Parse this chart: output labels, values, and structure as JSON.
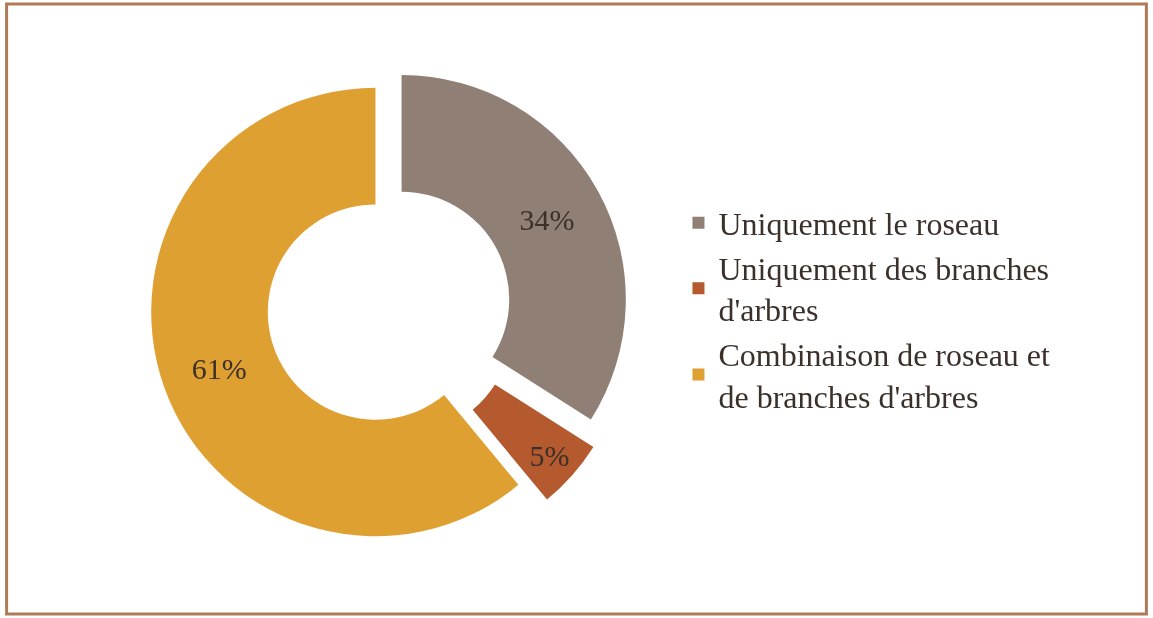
{
  "chart_data": {
    "type": "donut",
    "categories": [
      "Uniquement le roseau",
      "Uniquement des branches d'arbres",
      "Combinaison de roseau et de branches d'arbres"
    ],
    "values": [
      34,
      5,
      61
    ],
    "colors": [
      "#8f7f74",
      "#b5592f",
      "#dfa032"
    ],
    "value_labels": [
      "34%",
      "5%",
      "61%"
    ],
    "legend": "right"
  }
}
